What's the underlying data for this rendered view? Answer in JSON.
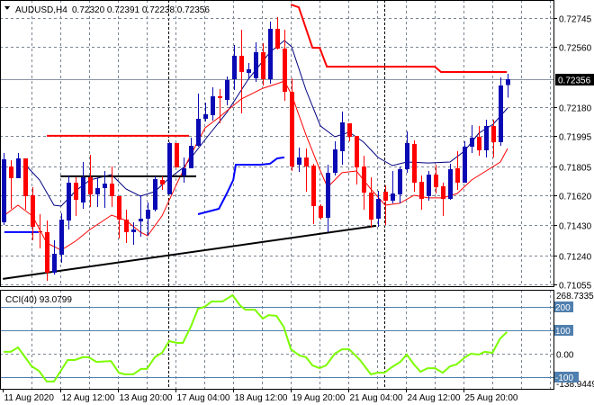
{
  "header": {
    "menu_icon": "triangle-down-icon",
    "symbol": "AUDUSD,H4",
    "ohlc_text": "0.72320 0.72391 0.72238 0.72356"
  },
  "colors": {
    "bull": "#0a0ab4",
    "bear": "#ff0000",
    "ma_fast": "#000080",
    "ma_slow": "#ff0000",
    "cci": "#7cfc00",
    "level": "#4f7fae",
    "grid": "#7a8594",
    "current_price_bg": "#000000"
  },
  "chart_data": [
    {
      "type": "candlestick",
      "title": "AUDUSD,H4",
      "ylim": [
        0.71043,
        0.72859
      ],
      "xlim": [
        -0.5,
        76.375
      ],
      "grid": true,
      "current_price": "0.72356",
      "y_ticks": [
        "0.72745",
        "0.72560",
        "0.72180",
        "0.71995",
        "0.71805",
        "0.71620",
        "0.71430",
        "0.71240",
        "0.71055"
      ],
      "x_labels": [
        "11 Aug 2020",
        "12 Aug 12:00",
        "13 Aug 20:00",
        "17 Aug 04:00",
        "18 Aug 12:00",
        "19 Aug 20:00",
        "21 Aug 04:00",
        "24 Aug 12:00",
        "25 Aug 20:00"
      ],
      "ohlc": [
        [
          0.71449,
          0.71888,
          0.71431,
          0.71848
        ],
        [
          0.71802,
          0.71842,
          0.71534,
          0.71728
        ],
        [
          0.71728,
          0.71888,
          0.71728,
          0.71854
        ],
        [
          0.71854,
          0.71854,
          0.71529,
          0.71614
        ],
        [
          0.7162,
          0.71671,
          0.71334,
          0.7142
        ],
        [
          0.71391,
          0.715,
          0.71283,
          0.71386
        ],
        [
          0.71386,
          0.7146,
          0.71077,
          0.71129
        ],
        [
          0.71129,
          0.71334,
          0.71117,
          0.71248
        ],
        [
          0.71242,
          0.71506,
          0.71191,
          0.71466
        ],
        [
          0.7146,
          0.71745,
          0.71403,
          0.717
        ],
        [
          0.717,
          0.71734,
          0.71489,
          0.71591
        ],
        [
          0.71574,
          0.71831,
          0.71534,
          0.71734
        ],
        [
          0.71734,
          0.71877,
          0.71546,
          0.71626
        ],
        [
          0.71626,
          0.71728,
          0.71546,
          0.71666
        ],
        [
          0.71666,
          0.71774,
          0.7154,
          0.71694
        ],
        [
          0.71694,
          0.71802,
          0.71546,
          0.71614
        ],
        [
          0.71614,
          0.71614,
          0.71346,
          0.71466
        ],
        [
          0.71466,
          0.71529,
          0.71317,
          0.71386
        ],
        [
          0.71386,
          0.71449,
          0.71306,
          0.71403
        ],
        [
          0.71454,
          0.7162,
          0.71357,
          0.71471
        ],
        [
          0.71471,
          0.71574,
          0.71363,
          0.71529
        ],
        [
          0.71529,
          0.7174,
          0.71517,
          0.71723
        ],
        [
          0.71717,
          0.7174,
          0.71654,
          0.71688
        ],
        [
          0.71626,
          0.71957,
          0.71626,
          0.71951
        ],
        [
          0.71951,
          0.71951,
          0.71797,
          0.71797
        ],
        [
          0.71745,
          0.7186,
          0.717,
          0.71791
        ],
        [
          0.71791,
          0.71985,
          0.71791,
          0.71934
        ],
        [
          0.71934,
          0.72265,
          0.71928,
          0.72105
        ],
        [
          0.72105,
          0.72208,
          0.72088,
          0.72134
        ],
        [
          0.72128,
          0.72305,
          0.72094,
          0.72248
        ],
        [
          0.72248,
          0.72294,
          0.72077,
          0.72237
        ],
        [
          0.72225,
          0.72374,
          0.72191,
          0.72351
        ],
        [
          0.72357,
          0.72574,
          0.72288,
          0.72505
        ],
        [
          0.72505,
          0.72671,
          0.7214,
          0.72402
        ],
        [
          0.72397,
          0.72459,
          0.72357,
          0.72419
        ],
        [
          0.72362,
          0.72591,
          0.72339,
          0.72528
        ],
        [
          0.72528,
          0.72585,
          0.72317,
          0.72357
        ],
        [
          0.72357,
          0.72722,
          0.72328,
          0.72676
        ],
        [
          0.72676,
          0.72751,
          0.72545,
          0.72551
        ],
        [
          0.72551,
          0.72671,
          0.7222,
          0.72277
        ],
        [
          0.72277,
          0.72362,
          0.71774,
          0.71802
        ],
        [
          0.71814,
          0.71923,
          0.71768,
          0.7186
        ],
        [
          0.7186,
          0.71917,
          0.71643,
          0.71802
        ],
        [
          0.71808,
          0.7182,
          0.71437,
          0.71551
        ],
        [
          0.71551,
          0.71563,
          0.71466,
          0.71477
        ],
        [
          0.71477,
          0.71814,
          0.71386,
          0.71763
        ],
        [
          0.71763,
          0.71963,
          0.71745,
          0.71911
        ],
        [
          0.719,
          0.72151,
          0.71814,
          0.72083
        ],
        [
          0.72077,
          0.72077,
          0.71963,
          0.71991
        ],
        [
          0.71997,
          0.71997,
          0.71688,
          0.71797
        ],
        [
          0.71802,
          0.71871,
          0.71529,
          0.71637
        ],
        [
          0.71637,
          0.71734,
          0.71414,
          0.71466
        ],
        [
          0.71471,
          0.71648,
          0.7142,
          0.71597
        ],
        [
          0.71643,
          0.71683,
          0.71431,
          0.71586
        ],
        [
          0.71586,
          0.71774,
          0.71569,
          0.71631
        ],
        [
          0.71626,
          0.71802,
          0.71569,
          0.71785
        ],
        [
          0.71785,
          0.72025,
          0.71763,
          0.71951
        ],
        [
          0.71945,
          0.71968,
          0.71643,
          0.717
        ],
        [
          0.71706,
          0.71745,
          0.71529,
          0.71597
        ],
        [
          0.71614,
          0.71774,
          0.71586,
          0.71751
        ],
        [
          0.71751,
          0.71814,
          0.71631,
          0.71671
        ],
        [
          0.71677,
          0.717,
          0.71489,
          0.71597
        ],
        [
          0.71597,
          0.7182,
          0.71591,
          0.71785
        ],
        [
          0.71791,
          0.719,
          0.71654,
          0.717
        ],
        [
          0.717,
          0.71963,
          0.717,
          0.71928
        ],
        [
          0.71928,
          0.72065,
          0.71888,
          0.71985
        ],
        [
          0.71991,
          0.7206,
          0.71871,
          0.71905
        ],
        [
          0.71905,
          0.721,
          0.7186,
          0.7206
        ],
        [
          0.7206,
          0.721,
          0.7186,
          0.71957
        ],
        [
          0.71957,
          0.72368,
          0.71934,
          0.72317
        ],
        [
          0.7232,
          0.72391,
          0.72238,
          0.72356
        ]
      ],
      "lines": [
        {
          "name": "ma-fast",
          "color_key": "ma_fast",
          "width": 1,
          "points": [
            [
              3,
              0.71814
            ],
            [
              5,
              0.71717
            ],
            [
              7,
              0.71557
            ],
            [
              8,
              0.71551
            ],
            [
              10,
              0.71648
            ],
            [
              12,
              0.71717
            ],
            [
              15,
              0.71751
            ],
            [
              17,
              0.7166
            ],
            [
              19,
              0.71614
            ],
            [
              21,
              0.71643
            ],
            [
              23,
              0.71728
            ],
            [
              25,
              0.71797
            ],
            [
              28,
              0.71974
            ],
            [
              31,
              0.72145
            ],
            [
              34,
              0.72357
            ],
            [
              37,
              0.72528
            ],
            [
              39,
              0.72602
            ],
            [
              40,
              0.72562
            ],
            [
              42,
              0.72288
            ],
            [
              44,
              0.7206
            ],
            [
              46,
              0.71991
            ],
            [
              48,
              0.7202
            ],
            [
              50,
              0.71957
            ],
            [
              52,
              0.7186
            ],
            [
              54,
              0.71808
            ],
            [
              56,
              0.71831
            ],
            [
              59,
              0.71825
            ],
            [
              62,
              0.71831
            ],
            [
              64,
              0.719
            ],
            [
              66,
              0.72014
            ],
            [
              68,
              0.72071
            ],
            [
              70,
              0.72174
            ]
          ]
        },
        {
          "name": "ma-slow",
          "color_key": "ma_slow",
          "width": 1,
          "points": [
            [
              0,
              0.71489
            ],
            [
              2,
              0.71557
            ],
            [
              4,
              0.71489
            ],
            [
              6,
              0.71317
            ],
            [
              8,
              0.71272
            ],
            [
              10,
              0.71329
            ],
            [
              12,
              0.71403
            ],
            [
              15,
              0.71494
            ],
            [
              17,
              0.7146
            ],
            [
              19,
              0.71386
            ],
            [
              20,
              0.71363
            ],
            [
              22,
              0.71489
            ],
            [
              24,
              0.71688
            ],
            [
              26,
              0.71877
            ],
            [
              28,
              0.72048
            ],
            [
              30,
              0.72117
            ],
            [
              33,
              0.72231
            ],
            [
              36,
              0.72299
            ],
            [
              38,
              0.72328
            ],
            [
              39,
              0.72345
            ],
            [
              40,
              0.72259
            ],
            [
              42,
              0.72003
            ],
            [
              44,
              0.71774
            ],
            [
              45,
              0.71671
            ],
            [
              47,
              0.71763
            ],
            [
              49,
              0.71774
            ],
            [
              51,
              0.7166
            ],
            [
              53,
              0.71557
            ],
            [
              55,
              0.71569
            ],
            [
              57,
              0.7162
            ],
            [
              59,
              0.71603
            ],
            [
              61,
              0.71603
            ],
            [
              63,
              0.71631
            ],
            [
              65,
              0.71717
            ],
            [
              67,
              0.71774
            ],
            [
              69,
              0.71831
            ],
            [
              70,
              0.71917
            ]
          ]
        },
        {
          "name": "resistance-step-1",
          "color": "#ff0000",
          "width": 2,
          "points": [
            [
              6,
              0.71997
            ],
            [
              25.75,
              0.71997
            ]
          ]
        },
        {
          "name": "resistance-step-2",
          "color": "#ff0000",
          "width": 2,
          "points": [
            [
              39.9,
              0.7283
            ],
            [
              41,
              0.72813
            ],
            [
              42.9,
              0.72556
            ],
            [
              43.9,
              0.72556
            ],
            [
              44.9,
              0.72436
            ],
            [
              59.9,
              0.72436
            ],
            [
              60.75,
              0.72402
            ],
            [
              69.9,
              0.72402
            ]
          ]
        },
        {
          "name": "support-step-1",
          "color": "#0000ff",
          "width": 2,
          "points": [
            [
              0.1,
              0.71386
            ],
            [
              4.9,
              0.71386
            ]
          ]
        },
        {
          "name": "support-step-2",
          "color": "#0000ff",
          "width": 2,
          "points": [
            [
              27,
              0.715
            ],
            [
              29.9,
              0.71534
            ],
            [
              31,
              0.71631
            ],
            [
              31.9,
              0.71717
            ],
            [
              32.25,
              0.71814
            ],
            [
              35.75,
              0.71814
            ],
            [
              37,
              0.7182
            ],
            [
              38,
              0.71854
            ],
            [
              39,
              0.7186
            ]
          ]
        },
        {
          "name": "horizontal-level-line",
          "color": "#000000",
          "width": 2,
          "points": [
            [
              7.9,
              0.7174
            ],
            [
              26.75,
              0.7174
            ]
          ]
        },
        {
          "name": "trend-line",
          "color": "#000000",
          "width": 2,
          "points": [
            [
              -0.1,
              0.71089
            ],
            [
              51.75,
              0.71426
            ]
          ]
        }
      ]
    },
    {
      "type": "line",
      "title": "CCI(40)",
      "label": "CCI(40) 93.0799",
      "ylim": [
        -150,
        273
      ],
      "max_label": "268.7335",
      "min_label": "-138.9449",
      "levels": [
        {
          "value": 200,
          "label": "200"
        },
        {
          "value": 100,
          "label": "100"
        },
        {
          "value": -100,
          "label": "-100"
        }
      ],
      "zero_label": "0.00",
      "points": [
        [
          0,
          8
        ],
        [
          1,
          8
        ],
        [
          2,
          27
        ],
        [
          3.9,
          -54
        ],
        [
          4.9,
          -73
        ],
        [
          6,
          -119
        ],
        [
          7,
          -119
        ],
        [
          8.9,
          -27
        ],
        [
          9.9,
          -27
        ],
        [
          11,
          -15
        ],
        [
          11.8,
          -15
        ],
        [
          12.9,
          -35
        ],
        [
          14.9,
          -31
        ],
        [
          16,
          -81
        ],
        [
          16.8,
          -88
        ],
        [
          18,
          -88
        ],
        [
          19.1,
          -65
        ],
        [
          19.9,
          -65
        ],
        [
          21,
          -15
        ],
        [
          22,
          4
        ],
        [
          23,
          54
        ],
        [
          24.1,
          46
        ],
        [
          24.9,
          46
        ],
        [
          26,
          115
        ],
        [
          27,
          192
        ],
        [
          27.9,
          200
        ],
        [
          28.9,
          223
        ],
        [
          30.4,
          223
        ],
        [
          31.8,
          250
        ],
        [
          32.9,
          204
        ],
        [
          33.6,
          188
        ],
        [
          34.9,
          188
        ],
        [
          36,
          150
        ],
        [
          36.8,
          165
        ],
        [
          37.9,
          162
        ],
        [
          38.9,
          115
        ],
        [
          39.5,
          58
        ],
        [
          39.9,
          19
        ],
        [
          41.1,
          -8
        ],
        [
          42,
          -15
        ],
        [
          42.9,
          -50
        ],
        [
          43.9,
          -62
        ],
        [
          44.8,
          -50
        ],
        [
          46,
          0
        ],
        [
          47,
          19
        ],
        [
          48,
          19
        ],
        [
          49.5,
          -27
        ],
        [
          51,
          -88
        ],
        [
          52,
          -81
        ],
        [
          52.9,
          -81
        ],
        [
          53.9,
          -58
        ],
        [
          55.1,
          -35
        ],
        [
          56,
          -4
        ],
        [
          57,
          -46
        ],
        [
          57.9,
          -77
        ],
        [
          58.9,
          -62
        ],
        [
          59.9,
          -62
        ],
        [
          61,
          -81
        ],
        [
          62,
          -54
        ],
        [
          62.9,
          -46
        ],
        [
          64.1,
          -15
        ],
        [
          64.9,
          0
        ],
        [
          66,
          -4
        ],
        [
          66.8,
          8
        ],
        [
          67.9,
          4
        ],
        [
          68.9,
          62
        ],
        [
          69.9,
          93.08
        ]
      ]
    }
  ]
}
